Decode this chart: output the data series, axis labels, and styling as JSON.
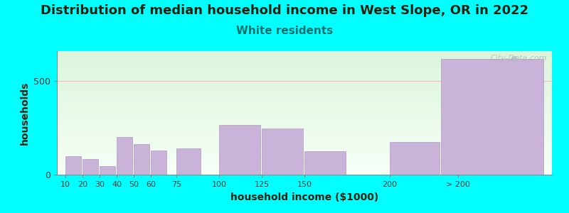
{
  "title": "Distribution of median household income in West Slope, OR in 2022",
  "subtitle": "White residents",
  "xlabel": "household income ($1000)",
  "ylabel": "households",
  "background_color": "#00FFFF",
  "bar_color": "#c9b3d9",
  "bar_edge_color": "#b09abe",
  "subtitle_color": "#007070",
  "categories": [
    "10",
    "20",
    "30",
    "40",
    "50",
    "60",
    "75",
    "100",
    "125",
    "150",
    "200",
    "> 200"
  ],
  "values": [
    100,
    82,
    45,
    200,
    165,
    130,
    140,
    265,
    245,
    125,
    175,
    620
  ],
  "positions": [
    10,
    20,
    30,
    40,
    50,
    60,
    75,
    100,
    125,
    150,
    200,
    230
  ],
  "widths": [
    9,
    9,
    9,
    9,
    9,
    9,
    14,
    24,
    24,
    24,
    29,
    60
  ],
  "tick_positions": [
    10,
    20,
    30,
    40,
    50,
    60,
    75,
    100,
    125,
    150,
    200,
    240
  ],
  "tick_labels": [
    "10",
    "20",
    "30",
    "40",
    "50",
    "60",
    "75",
    "100",
    "125",
    "150",
    "200",
    "> 200"
  ],
  "xlim": [
    5,
    295
  ],
  "ylim": [
    0,
    660
  ],
  "yticks": [
    0,
    500
  ],
  "hline_y": 500,
  "hline_color": "#ffbbbb",
  "title_fontsize": 13,
  "subtitle_fontsize": 11,
  "axis_label_fontsize": 10,
  "tick_fontsize": 8,
  "watermark": "City-Data.com"
}
